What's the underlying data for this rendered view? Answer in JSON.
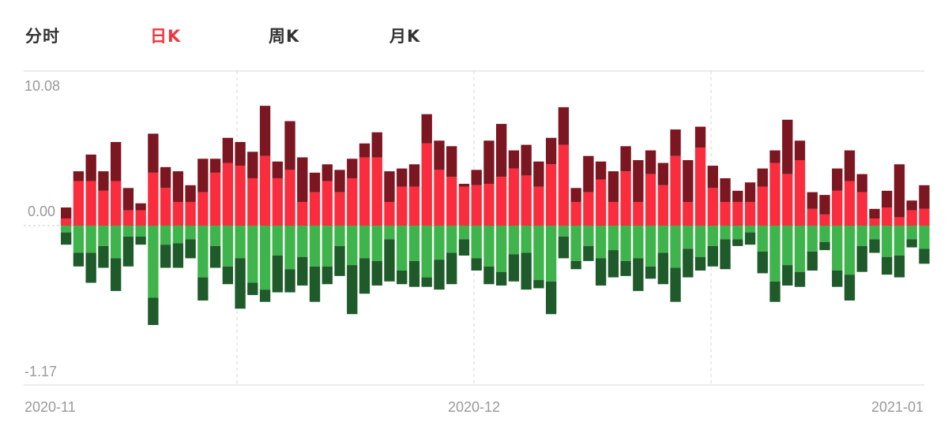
{
  "tabs": [
    {
      "label": "分时",
      "active": false
    },
    {
      "label": "日K",
      "active": true
    },
    {
      "label": "周K",
      "active": false
    },
    {
      "label": "月K",
      "active": false
    }
  ],
  "colors": {
    "accent": "#f2343f",
    "pos_light": "#f92d3d",
    "pos_dark": "#7c1621",
    "neg_light": "#40b44c",
    "neg_dark": "#1f5a2a",
    "axis_text": "#999999",
    "tab_text": "#333333"
  },
  "chart_data": {
    "type": "bar",
    "stacked": true,
    "ylim": [
      -1.17,
      10.08
    ],
    "y_tick_labels": [
      "10.08",
      "0.00",
      "-1.17"
    ],
    "x_tick_labels": [
      "2020-11",
      "2020-12",
      "2021-01"
    ],
    "grid": "vertical dashed lines at month boundaries",
    "series": [
      {
        "values_positive_light": [
          0.5,
          3.2,
          3.2,
          2.5,
          3.2,
          1.1,
          1.1,
          3.8,
          2.7,
          1.7,
          1.7,
          2.4,
          3.8,
          4.5,
          4.3,
          3.4,
          5.0,
          3.4,
          4.0,
          1.7,
          2.4,
          3.2,
          2.4,
          3.4,
          4.9,
          4.9,
          1.7,
          2.8,
          2.8,
          5.9,
          4.0,
          3.5,
          2.8,
          2.9,
          3.0,
          3.5,
          4.1,
          3.6,
          2.8,
          4.4,
          5.8,
          1.7,
          2.4,
          3.3,
          1.7,
          3.9,
          1.7,
          3.7,
          2.9,
          5.0,
          1.7,
          5.6,
          2.7,
          1.7,
          1.7,
          1.7,
          2.8,
          4.5,
          3.7,
          4.7,
          1.2,
          0.8,
          2.5,
          3.2,
          2.4,
          0.5,
          1.3,
          0.6,
          1.1,
          1.2
        ],
        "values_positive_dark": [
          0.8,
          0.7,
          1.9,
          1.4,
          2.8,
          1.6,
          0.5,
          2.8,
          1.5,
          2.2,
          1.2,
          2.4,
          1.0,
          1.8,
          1.7,
          1.9,
          3.6,
          1.2,
          3.5,
          3.2,
          1.4,
          1.2,
          1.6,
          1.4,
          1.0,
          1.8,
          2.2,
          1.3,
          1.6,
          2.1,
          2.1,
          2.2,
          0.2,
          1.1,
          3.1,
          3.8,
          1.3,
          2.2,
          1.8,
          1.9,
          2.7,
          1.0,
          2.6,
          1.3,
          2.2,
          1.8,
          3.0,
          1.7,
          1.6,
          1.9,
          3.0,
          1.5,
          1.6,
          1.7,
          0.8,
          1.4,
          1.3,
          0.9,
          3.9,
          1.4,
          1.2,
          1.4,
          1.6,
          2.2,
          1.3,
          0.7,
          1.2,
          3.8,
          0.7,
          1.7
        ]
      },
      {
        "values_negative_light": [
          -0.05,
          -0.2,
          -0.2,
          -0.15,
          -0.24,
          -0.08,
          -0.08,
          -0.53,
          -0.14,
          -0.13,
          -0.1,
          -0.38,
          -0.15,
          -0.3,
          -0.24,
          -0.42,
          -0.47,
          -0.22,
          -0.32,
          -0.23,
          -0.3,
          -0.3,
          -0.15,
          -0.29,
          -0.24,
          -0.26,
          -0.1,
          -0.33,
          -0.26,
          -0.38,
          -0.25,
          -0.2,
          -0.1,
          -0.24,
          -0.3,
          -0.34,
          -0.21,
          -0.2,
          -0.4,
          -0.41,
          -0.08,
          -0.26,
          -0.15,
          -0.24,
          -0.18,
          -0.26,
          -0.24,
          -0.3,
          -0.2,
          -0.31,
          -0.17,
          -0.23,
          -0.15,
          -0.1,
          -0.1,
          -0.05,
          -0.19,
          -0.41,
          -0.29,
          -0.34,
          -0.19,
          -0.12,
          -0.33,
          -0.36,
          -0.15,
          -0.1,
          -0.23,
          -0.22,
          -0.1,
          -0.17
        ],
        "values_negative_dark": [
          -0.09,
          -0.1,
          -0.22,
          -0.16,
          -0.24,
          -0.22,
          -0.06,
          -0.2,
          -0.17,
          -0.18,
          -0.14,
          -0.17,
          -0.16,
          -0.13,
          -0.37,
          -0.09,
          -0.09,
          -0.27,
          -0.17,
          -0.21,
          -0.26,
          -0.13,
          -0.22,
          -0.36,
          -0.26,
          -0.18,
          -0.31,
          -0.1,
          -0.19,
          -0.07,
          -0.22,
          -0.23,
          -0.12,
          -0.09,
          -0.13,
          -0.1,
          -0.2,
          -0.27,
          -0.06,
          -0.24,
          -0.16,
          -0.06,
          -0.11,
          -0.2,
          -0.2,
          -0.11,
          -0.24,
          -0.09,
          -0.23,
          -0.25,
          -0.21,
          -0.1,
          -0.15,
          -0.22,
          -0.05,
          -0.09,
          -0.16,
          -0.15,
          -0.15,
          -0.11,
          -0.14,
          -0.06,
          -0.12,
          -0.19,
          -0.19,
          -0.1,
          -0.13,
          -0.16,
          -0.06,
          -0.11
        ]
      }
    ]
  }
}
